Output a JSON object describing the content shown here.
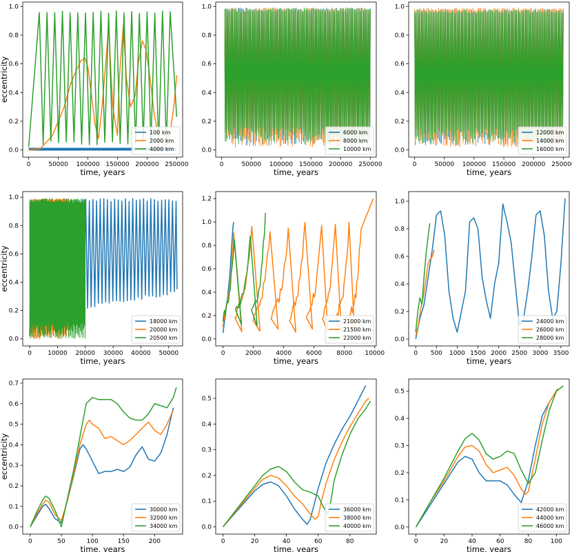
{
  "colors": {
    "c0": "#1f77b4",
    "c1": "#ff7f0e",
    "c2": "#2ca02c"
  },
  "labels": {
    "xlabel": "time, years",
    "ylabel": "eccentricity"
  },
  "chart_data": [
    {
      "type": "line",
      "xlabel": "time, years",
      "ylabel": "eccentricity",
      "xlim": [
        -10000,
        260000
      ],
      "ylim": [
        -0.05,
        1.03
      ],
      "xticks": [
        0,
        50000,
        100000,
        150000,
        200000,
        250000
      ],
      "yticks": [
        0.0,
        0.2,
        0.4,
        0.6,
        0.8,
        1.0
      ],
      "legend": "lower right",
      "series": [
        {
          "name": "100 km",
          "color": "#1f77b4",
          "style": "thick-flat",
          "x": [
            0,
            250000
          ],
          "y": [
            0.005,
            0.005
          ]
        },
        {
          "name": "2000 km",
          "color": "#ff7f0e",
          "x": [
            0,
            20000,
            40000,
            60000,
            70000,
            80000,
            88000,
            95000,
            100000,
            106000,
            112000,
            118000,
            124000,
            130000,
            135000,
            142000,
            150000,
            153000,
            160000,
            165000,
            172000,
            180000,
            185000,
            192000,
            198000,
            205000,
            212000,
            220000,
            232000,
            240000,
            245000,
            250000
          ],
          "y": [
            0.0,
            0.01,
            0.1,
            0.3,
            0.45,
            0.55,
            0.62,
            0.64,
            0.58,
            0.38,
            0.18,
            0.08,
            0.3,
            0.6,
            0.86,
            0.3,
            0.1,
            0.5,
            0.87,
            0.5,
            0.3,
            0.38,
            0.6,
            0.76,
            0.7,
            0.5,
            0.25,
            0.07,
            0.03,
            0.15,
            0.3,
            0.52
          ]
        },
        {
          "name": "4000 km",
          "color": "#2ca02c",
          "style": "osc",
          "x0": 0,
          "x1": 250000,
          "peaks": [
            18000,
            31000,
            44000,
            57000,
            70000,
            83000,
            96000,
            109000,
            122000,
            135000,
            148000,
            161000,
            174000,
            187000,
            200000,
            213000,
            226000,
            239000
          ],
          "ymax": 0.97,
          "ymin": 0.03
        }
      ]
    },
    {
      "type": "line",
      "xlabel": "time, years",
      "ylabel": "",
      "xlim": [
        -10000,
        260000
      ],
      "ylim": [
        -0.05,
        1.03
      ],
      "xticks": [
        0,
        50000,
        100000,
        150000,
        200000,
        250000
      ],
      "yticks": [
        0.0,
        0.2,
        0.4,
        0.6,
        0.8,
        1.0
      ],
      "legend": "lower right",
      "series": [
        {
          "name": "6000 km",
          "color": "#1f77b4",
          "style": "noise",
          "x0": 5000,
          "x1": 250000,
          "ymax": 0.99,
          "ymin": 0.03
        },
        {
          "name": "8000 km",
          "color": "#ff7f0e",
          "style": "noise",
          "x0": 5000,
          "x1": 250000,
          "ymax": 0.99,
          "ymin": 0.02
        },
        {
          "name": "10000 km",
          "color": "#2ca02c",
          "style": "noise",
          "x0": 5000,
          "x1": 250000,
          "ymax": 0.99,
          "ymin": 0.04
        }
      ]
    },
    {
      "type": "line",
      "xlabel": "time, years",
      "ylabel": "",
      "xlim": [
        -10000,
        260000
      ],
      "ylim": [
        -0.05,
        1.03
      ],
      "xticks": [
        0,
        50000,
        100000,
        150000,
        200000,
        250000
      ],
      "yticks": [
        0.0,
        0.2,
        0.4,
        0.6,
        0.8,
        1.0
      ],
      "legend": "lower right",
      "series": [
        {
          "name": "12000 km",
          "color": "#1f77b4",
          "style": "noise",
          "x0": 0,
          "x1": 250000,
          "ymax": 0.98,
          "ymin": 0.03
        },
        {
          "name": "14000 km",
          "color": "#ff7f0e",
          "style": "noise",
          "x0": 0,
          "x1": 250000,
          "ymax": 0.99,
          "ymin": 0.02
        },
        {
          "name": "16000 km",
          "color": "#2ca02c",
          "style": "noise",
          "x0": 0,
          "x1": 250000,
          "ymax": 0.98,
          "ymin": 0.04
        }
      ]
    },
    {
      "type": "line",
      "xlabel": "time, years",
      "ylabel": "eccentricity",
      "xlim": [
        -2500,
        55000
      ],
      "ylim": [
        -0.05,
        1.04
      ],
      "xticks": [
        0,
        10000,
        20000,
        30000,
        40000,
        50000
      ],
      "yticks": [
        0.0,
        0.2,
        0.4,
        0.6,
        0.8,
        1.0
      ],
      "legend": "lower right",
      "series": [
        {
          "name": "18000 km",
          "color": "#1f77b4",
          "style": "osc",
          "x0": 0,
          "x1": 53000,
          "period": 1300,
          "ymax": 0.99,
          "ymin": 0.15,
          "yminEnd": 0.32
        },
        {
          "name": "20000 km",
          "color": "#ff7f0e",
          "style": "noise",
          "x0": 0,
          "x1": 14000,
          "ymax": 0.99,
          "ymin": 0.0
        },
        {
          "name": "20500 km",
          "color": "#2ca02c",
          "style": "noise",
          "x0": 0,
          "x1": 20000,
          "ymax": 0.99,
          "ymin": 0.0
        }
      ]
    },
    {
      "type": "line",
      "xlabel": "time, years",
      "ylabel": "",
      "xlim": [
        -480,
        10100
      ],
      "ylim": [
        -0.06,
        1.26
      ],
      "xticks": [
        0,
        2000,
        4000,
        6000,
        8000,
        10000
      ],
      "yticks": [
        0.0,
        0.2,
        0.4,
        0.6,
        0.8,
        1.0,
        1.2
      ],
      "legend": "lower right",
      "series": [
        {
          "name": "21000 km",
          "color": "#1f77b4",
          "x": [
            0,
            150,
            300,
            450,
            550,
            650,
            700
          ],
          "y": [
            0.05,
            0.2,
            0.35,
            0.55,
            0.75,
            0.95,
            1.0
          ]
        },
        {
          "name": "21500 km",
          "color": "#ff7f0e",
          "style": "peaks",
          "x0": 0,
          "x1": 9900,
          "peaks": [
            700,
            1900,
            3100,
            4300,
            5400,
            6500,
            7400,
            8300,
            9100
          ],
          "pvals": [
            0.9,
            0.93,
            0.92,
            0.93,
            0.96,
            0.95,
            0.98,
            0.96,
            0.97
          ],
          "ymin": 0.05,
          "end": 1.2
        },
        {
          "name": "22000 km",
          "color": "#2ca02c",
          "style": "peaks",
          "x0": 0,
          "x1": 2800,
          "peaks": [
            750,
            1800,
            2800
          ],
          "pvals": [
            0.88,
            0.88,
            1.05
          ],
          "ymin": 0.1
        }
      ]
    },
    {
      "type": "line",
      "xlabel": "time, years",
      "ylabel": "",
      "xlim": [
        -170,
        3700
      ],
      "ylim": [
        -0.05,
        1.07
      ],
      "xticks": [
        0,
        500,
        1000,
        1500,
        2000,
        2500,
        3000,
        3500
      ],
      "yticks": [
        0.0,
        0.2,
        0.4,
        0.6,
        0.8,
        1.0
      ],
      "legend": "lower right",
      "series": [
        {
          "name": "24000 km",
          "color": "#1f77b4",
          "x": [
            0,
            100,
            200,
            300,
            400,
            500,
            600,
            700,
            800,
            900,
            1000,
            1100,
            1200,
            1300,
            1400,
            1500,
            1600,
            1700,
            1800,
            1900,
            2000,
            2100,
            2200,
            2300,
            2400,
            2500,
            2600,
            2700,
            2800,
            2900,
            3000,
            3100,
            3200,
            3300,
            3400,
            3500,
            3600
          ],
          "y": [
            0.0,
            0.15,
            0.25,
            0.45,
            0.65,
            0.9,
            0.93,
            0.75,
            0.35,
            0.15,
            0.05,
            0.2,
            0.35,
            0.85,
            0.88,
            0.8,
            0.45,
            0.28,
            0.15,
            0.4,
            0.55,
            0.98,
            0.85,
            0.7,
            0.4,
            0.1,
            0.15,
            0.35,
            0.6,
            0.9,
            0.93,
            0.75,
            0.35,
            0.15,
            0.2,
            0.55,
            1.02
          ]
        },
        {
          "name": "26000 km",
          "color": "#ff7f0e",
          "x": [
            0,
            60,
            120,
            180,
            240,
            300,
            350,
            400,
            450
          ],
          "y": [
            0.02,
            0.1,
            0.22,
            0.3,
            0.42,
            0.55,
            0.58,
            0.6,
            0.65
          ]
        },
        {
          "name": "28000 km",
          "color": "#2ca02c",
          "x": [
            0,
            50,
            100,
            150,
            200,
            250,
            300,
            340
          ],
          "y": [
            0.05,
            0.2,
            0.3,
            0.25,
            0.45,
            0.62,
            0.75,
            0.84
          ]
        }
      ]
    },
    {
      "type": "line",
      "xlabel": "time, years",
      "ylabel": "eccentricity",
      "xlim": [
        -12,
        245
      ],
      "ylim": [
        -0.035,
        0.72
      ],
      "xticks": [
        0,
        50,
        100,
        150,
        200
      ],
      "yticks": [
        0.0,
        0.1,
        0.2,
        0.3,
        0.4,
        0.5,
        0.6,
        0.7
      ],
      "legend": "lower right",
      "series": [
        {
          "name": "30000 km",
          "color": "#1f77b4",
          "x": [
            0,
            10,
            20,
            25,
            30,
            40,
            50,
            60,
            70,
            80,
            85,
            90,
            100,
            110,
            120,
            130,
            140,
            150,
            160,
            170,
            180,
            190,
            200,
            210,
            220,
            230
          ],
          "y": [
            0.0,
            0.05,
            0.1,
            0.11,
            0.09,
            0.04,
            0.02,
            0.13,
            0.25,
            0.38,
            0.4,
            0.38,
            0.32,
            0.26,
            0.27,
            0.27,
            0.28,
            0.27,
            0.29,
            0.35,
            0.39,
            0.33,
            0.32,
            0.36,
            0.45,
            0.58
          ]
        },
        {
          "name": "32000 km",
          "color": "#ff7f0e",
          "x": [
            0,
            10,
            20,
            25,
            30,
            40,
            50,
            60,
            70,
            80,
            90,
            95,
            100,
            110,
            120,
            130,
            140,
            150,
            160,
            170,
            180,
            190,
            200,
            210,
            220,
            230
          ],
          "y": [
            0.0,
            0.06,
            0.11,
            0.13,
            0.12,
            0.06,
            0.03,
            0.13,
            0.26,
            0.4,
            0.5,
            0.52,
            0.5,
            0.48,
            0.43,
            0.44,
            0.42,
            0.4,
            0.42,
            0.45,
            0.48,
            0.51,
            0.47,
            0.45,
            0.5,
            0.57
          ]
        },
        {
          "name": "34000 km",
          "color": "#2ca02c",
          "x": [
            0,
            10,
            20,
            25,
            30,
            40,
            50,
            60,
            70,
            80,
            90,
            100,
            110,
            120,
            130,
            140,
            150,
            160,
            170,
            180,
            190,
            200,
            210,
            220,
            230,
            235
          ],
          "y": [
            0.0,
            0.07,
            0.13,
            0.15,
            0.14,
            0.08,
            0.0,
            0.14,
            0.28,
            0.44,
            0.6,
            0.63,
            0.62,
            0.62,
            0.62,
            0.6,
            0.56,
            0.53,
            0.52,
            0.52,
            0.55,
            0.6,
            0.59,
            0.58,
            0.63,
            0.68
          ]
        }
      ]
    },
    {
      "type": "line",
      "xlabel": "time, years",
      "ylabel": "",
      "xlim": [
        -4.6,
        96.6
      ],
      "ylim": [
        -0.028,
        0.575
      ],
      "xticks": [
        0,
        20,
        40,
        60,
        80
      ],
      "yticks": [
        0.0,
        0.1,
        0.2,
        0.3,
        0.4,
        0.5
      ],
      "legend": "lower right",
      "series": [
        {
          "name": "36000 km",
          "color": "#1f77b4",
          "x": [
            0,
            10,
            20,
            25,
            30,
            35,
            40,
            45,
            50,
            53,
            55,
            58,
            60,
            65,
            70,
            75,
            80,
            85,
            90
          ],
          "y": [
            0.0,
            0.07,
            0.14,
            0.165,
            0.175,
            0.16,
            0.12,
            0.07,
            0.03,
            0.01,
            0.03,
            0.1,
            0.15,
            0.25,
            0.32,
            0.38,
            0.43,
            0.49,
            0.55
          ]
        },
        {
          "name": "38000 km",
          "color": "#ff7f0e",
          "x": [
            0,
            10,
            20,
            25,
            30,
            35,
            40,
            45,
            50,
            55,
            58,
            60,
            62,
            65,
            70,
            75,
            80,
            85,
            90,
            92
          ],
          "y": [
            0.0,
            0.075,
            0.15,
            0.185,
            0.2,
            0.19,
            0.16,
            0.12,
            0.09,
            0.05,
            0.03,
            0.04,
            0.1,
            0.17,
            0.26,
            0.33,
            0.39,
            0.44,
            0.49,
            0.5
          ]
        },
        {
          "name": "40000 km",
          "color": "#2ca02c",
          "x": [
            0,
            10,
            20,
            25,
            30,
            35,
            40,
            45,
            50,
            55,
            60,
            63,
            66,
            68,
            70,
            75,
            80,
            85,
            90,
            93
          ],
          "y": [
            0.0,
            0.08,
            0.16,
            0.2,
            0.225,
            0.235,
            0.215,
            0.175,
            0.145,
            0.135,
            0.12,
            0.08,
            0.05,
            0.1,
            0.18,
            0.28,
            0.36,
            0.42,
            0.46,
            0.49
          ]
        }
      ]
    },
    {
      "type": "line",
      "xlabel": "time, years",
      "ylabel": "",
      "xlim": [
        -5.2,
        109.2
      ],
      "ylim": [
        -0.026,
        0.545
      ],
      "xticks": [
        0,
        20,
        40,
        60,
        80,
        100
      ],
      "yticks": [
        0.0,
        0.1,
        0.2,
        0.3,
        0.4,
        0.5
      ],
      "legend": "lower right",
      "series": [
        {
          "name": "42000 km",
          "color": "#1f77b4",
          "x": [
            0,
            10,
            20,
            30,
            35,
            40,
            45,
            50,
            55,
            60,
            65,
            70,
            75,
            80,
            85,
            90,
            95,
            100
          ],
          "y": [
            0.0,
            0.08,
            0.16,
            0.24,
            0.26,
            0.25,
            0.2,
            0.17,
            0.17,
            0.17,
            0.155,
            0.12,
            0.09,
            0.17,
            0.3,
            0.41,
            0.46,
            0.5
          ]
        },
        {
          "name": "44000 km",
          "color": "#ff7f0e",
          "x": [
            0,
            10,
            20,
            30,
            35,
            40,
            45,
            50,
            55,
            60,
            65,
            70,
            75,
            78,
            80,
            85,
            90,
            95,
            101
          ],
          "y": [
            0.0,
            0.09,
            0.17,
            0.26,
            0.295,
            0.3,
            0.28,
            0.23,
            0.2,
            0.21,
            0.22,
            0.19,
            0.14,
            0.12,
            0.13,
            0.25,
            0.38,
            0.46,
            0.51
          ]
        },
        {
          "name": "46000 km",
          "color": "#2ca02c",
          "x": [
            0,
            10,
            20,
            30,
            35,
            40,
            45,
            50,
            55,
            60,
            65,
            70,
            75,
            80,
            85,
            90,
            95,
            100,
            105
          ],
          "y": [
            0.0,
            0.09,
            0.18,
            0.28,
            0.325,
            0.345,
            0.32,
            0.27,
            0.25,
            0.26,
            0.28,
            0.27,
            0.21,
            0.16,
            0.2,
            0.32,
            0.43,
            0.5,
            0.52
          ]
        }
      ]
    }
  ]
}
